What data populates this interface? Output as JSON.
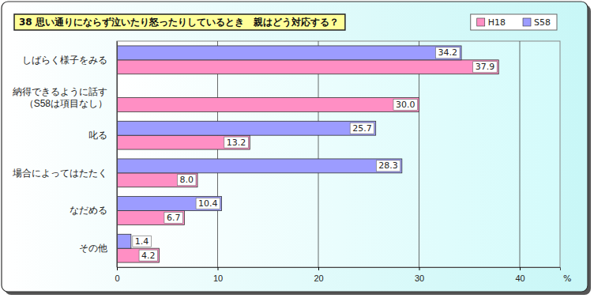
{
  "chart_data": {
    "type": "bar",
    "orientation": "horizontal",
    "title": "38 思い通りにならず泣いたり怒ったりしているとき　親はどう対応する？",
    "categories": [
      "しばらく様子をみる",
      "納得できるように話す\n（S58は項目なし）",
      "叱る",
      "場合によってはたたく",
      "なだめる",
      "その他"
    ],
    "series": [
      {
        "name": "H18",
        "color": "#ff8fc4",
        "values": [
          37.9,
          30.0,
          13.2,
          8.0,
          6.7,
          4.2
        ],
        "value_labels": [
          "37.9",
          "30.0",
          "13.2",
          "8.0",
          "6.7",
          "4.2"
        ]
      },
      {
        "name": "S58",
        "color": "#9c9cff",
        "values": [
          34.2,
          null,
          25.7,
          28.3,
          10.4,
          1.4
        ],
        "value_labels": [
          "34.2",
          null,
          "25.7",
          "28.3",
          "10.4",
          "1.4"
        ]
      }
    ],
    "xlim": [
      0,
      44
    ],
    "xticks": [
      0,
      10,
      20,
      30,
      40
    ],
    "xlabel": "%",
    "data_labels": true,
    "grid": true,
    "legend": "top-right"
  }
}
